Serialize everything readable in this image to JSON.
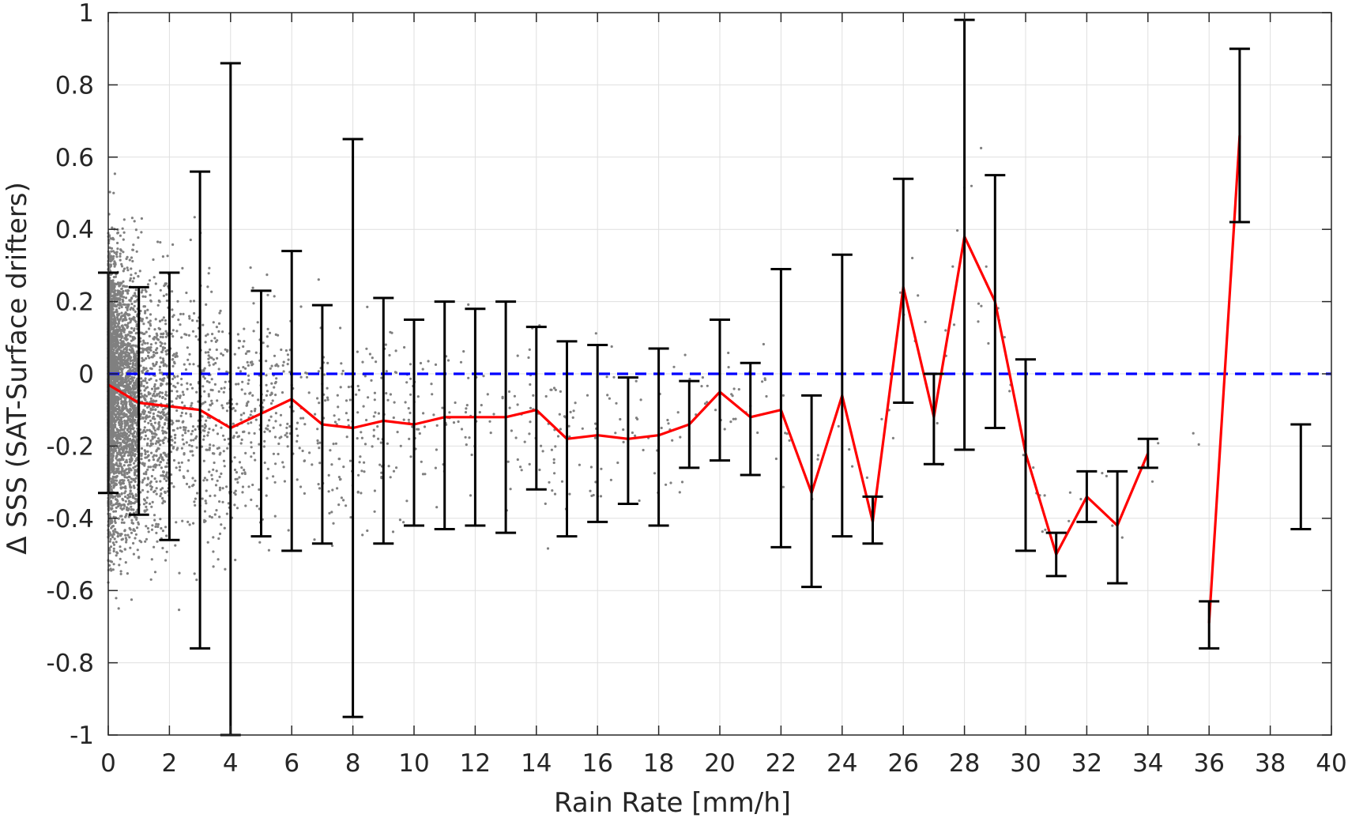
{
  "chart_data": {
    "type": "scatter",
    "title": "",
    "xlabel": "Rain Rate [mm/h]",
    "ylabel": "Δ SSS (SAT-Surface drifters)",
    "xlim": [
      0,
      40
    ],
    "ylim": [
      -1,
      1
    ],
    "grid": true,
    "xticks": [
      "0",
      "2",
      "4",
      "6",
      "8",
      "10",
      "12",
      "14",
      "16",
      "18",
      "20",
      "22",
      "24",
      "26",
      "28",
      "30",
      "32",
      "34",
      "36",
      "38",
      "40"
    ],
    "yticks": [
      "-1",
      "-0.8",
      "-0.6",
      "-0.4",
      "-0.2",
      "0",
      "0.2",
      "0.4",
      "0.6",
      "0.8",
      "1"
    ],
    "colors": {
      "scatter": "#808080",
      "mean_line": "#ff0000",
      "error_bars": "#000000",
      "zero_line": "#0000ff",
      "grid": "#dfdfdf",
      "axes": "#262626"
    },
    "series": [
      {
        "type": "line",
        "x": [
          0,
          1,
          2,
          3,
          4,
          5,
          6,
          7,
          8,
          9,
          10,
          11,
          12,
          13,
          14,
          15,
          16,
          17,
          18,
          19,
          20,
          21,
          22,
          23,
          24,
          25,
          26,
          27,
          28,
          29,
          30,
          31,
          32,
          33,
          34
        ],
        "y": [
          -0.03,
          -0.08,
          -0.09,
          -0.1,
          -0.15,
          -0.11,
          -0.07,
          -0.14,
          -0.15,
          -0.13,
          -0.14,
          -0.12,
          -0.12,
          -0.12,
          -0.1,
          -0.18,
          -0.17,
          -0.18,
          -0.17,
          -0.14,
          -0.05,
          -0.12,
          -0.1,
          -0.33,
          -0.06,
          -0.41,
          0.24,
          -0.12,
          0.38,
          0.2,
          -0.22,
          -0.5,
          -0.34,
          -0.42,
          -0.22
        ]
      },
      {
        "type": "line",
        "x": [
          36,
          37
        ],
        "y": [
          -0.69,
          0.66
        ]
      }
    ],
    "error_bars": [
      {
        "x": 0,
        "low": -0.33,
        "high": 0.28
      },
      {
        "x": 1,
        "low": -0.39,
        "high": 0.24
      },
      {
        "x": 2,
        "low": -0.46,
        "high": 0.28
      },
      {
        "x": 3,
        "low": -0.76,
        "high": 0.56
      },
      {
        "x": 4,
        "low": -1.0,
        "high": 0.86
      },
      {
        "x": 5,
        "low": -0.45,
        "high": 0.23
      },
      {
        "x": 6,
        "low": -0.49,
        "high": 0.34
      },
      {
        "x": 7,
        "low": -0.47,
        "high": 0.19
      },
      {
        "x": 8,
        "low": -0.95,
        "high": 0.65
      },
      {
        "x": 9,
        "low": -0.47,
        "high": 0.21
      },
      {
        "x": 10,
        "low": -0.42,
        "high": 0.15
      },
      {
        "x": 11,
        "low": -0.43,
        "high": 0.2
      },
      {
        "x": 12,
        "low": -0.42,
        "high": 0.18
      },
      {
        "x": 13,
        "low": -0.44,
        "high": 0.2
      },
      {
        "x": 14,
        "low": -0.32,
        "high": 0.13
      },
      {
        "x": 15,
        "low": -0.45,
        "high": 0.09
      },
      {
        "x": 16,
        "low": -0.41,
        "high": 0.08
      },
      {
        "x": 17,
        "low": -0.36,
        "high": -0.01
      },
      {
        "x": 18,
        "low": -0.42,
        "high": 0.07
      },
      {
        "x": 19,
        "low": -0.26,
        "high": -0.02
      },
      {
        "x": 20,
        "low": -0.24,
        "high": 0.15
      },
      {
        "x": 21,
        "low": -0.28,
        "high": 0.03
      },
      {
        "x": 22,
        "low": -0.48,
        "high": 0.29
      },
      {
        "x": 23,
        "low": -0.59,
        "high": -0.06
      },
      {
        "x": 24,
        "low": -0.45,
        "high": 0.33
      },
      {
        "x": 25,
        "low": -0.47,
        "high": -0.34
      },
      {
        "x": 26,
        "low": -0.08,
        "high": 0.54
      },
      {
        "x": 27,
        "low": -0.25,
        "high": 0.0
      },
      {
        "x": 28,
        "low": -0.21,
        "high": 0.98
      },
      {
        "x": 29,
        "low": -0.15,
        "high": 0.55
      },
      {
        "x": 30,
        "low": -0.49,
        "high": 0.04
      },
      {
        "x": 31,
        "low": -0.56,
        "high": -0.44
      },
      {
        "x": 32,
        "low": -0.41,
        "high": -0.27
      },
      {
        "x": 33,
        "low": -0.58,
        "high": -0.27
      },
      {
        "x": 34,
        "low": -0.26,
        "high": -0.18
      },
      {
        "x": 36,
        "low": -0.76,
        "high": -0.63
      },
      {
        "x": 37,
        "low": 0.42,
        "high": 0.9
      },
      {
        "x": 39,
        "low": -0.43,
        "high": -0.14
      }
    ],
    "zero_line": {
      "y": 0,
      "style": "dashed"
    },
    "scatter_density": [
      {
        "max_x": 1,
        "count": 3200,
        "spread": 0.32
      },
      {
        "max_x": 2,
        "count": 600,
        "spread": 0.3
      },
      {
        "max_x": 4,
        "count": 380,
        "spread": 0.3
      },
      {
        "max_x": 6,
        "count": 220,
        "spread": 0.27
      },
      {
        "max_x": 10,
        "count": 200,
        "spread": 0.25
      },
      {
        "max_x": 16,
        "count": 140,
        "spread": 0.2
      },
      {
        "max_x": 22,
        "count": 70,
        "spread": 0.17
      },
      {
        "max_x": 30,
        "count": 45,
        "spread": 0.17
      },
      {
        "max_x": 37,
        "count": 18,
        "spread": 0.1
      }
    ]
  }
}
